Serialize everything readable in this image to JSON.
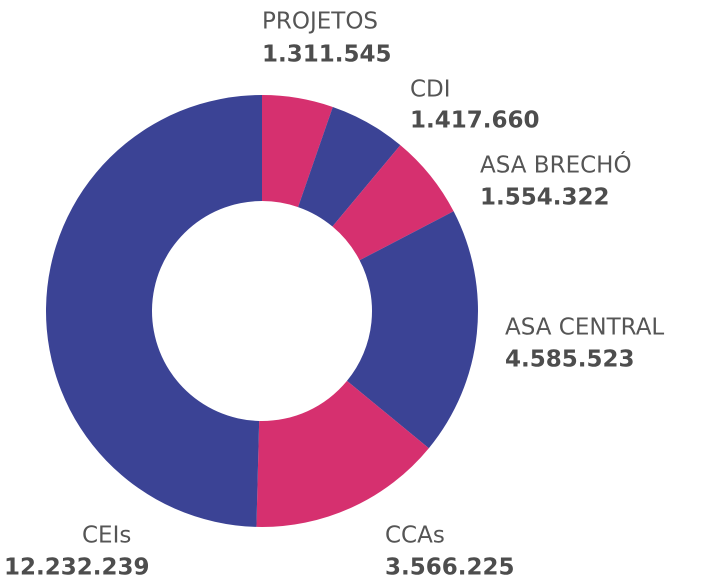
{
  "chart_data": {
    "type": "donut",
    "categories": [
      "PROJETOS",
      "CDI",
      "ASA BRECHÓ",
      "ASA CENTRAL",
      "CCAs",
      "CEIs"
    ],
    "values": [
      1311545,
      1417660,
      1554322,
      4585523,
      3566225,
      12232239
    ],
    "value_labels": [
      "1.311.545",
      "1.417.660",
      "1.554.322",
      "4.585.523",
      "3.566.225",
      "12.232.239"
    ],
    "colors": [
      "#d6306f",
      "#3b4395",
      "#d6306f",
      "#3b4395",
      "#d6306f",
      "#3b4395"
    ]
  }
}
